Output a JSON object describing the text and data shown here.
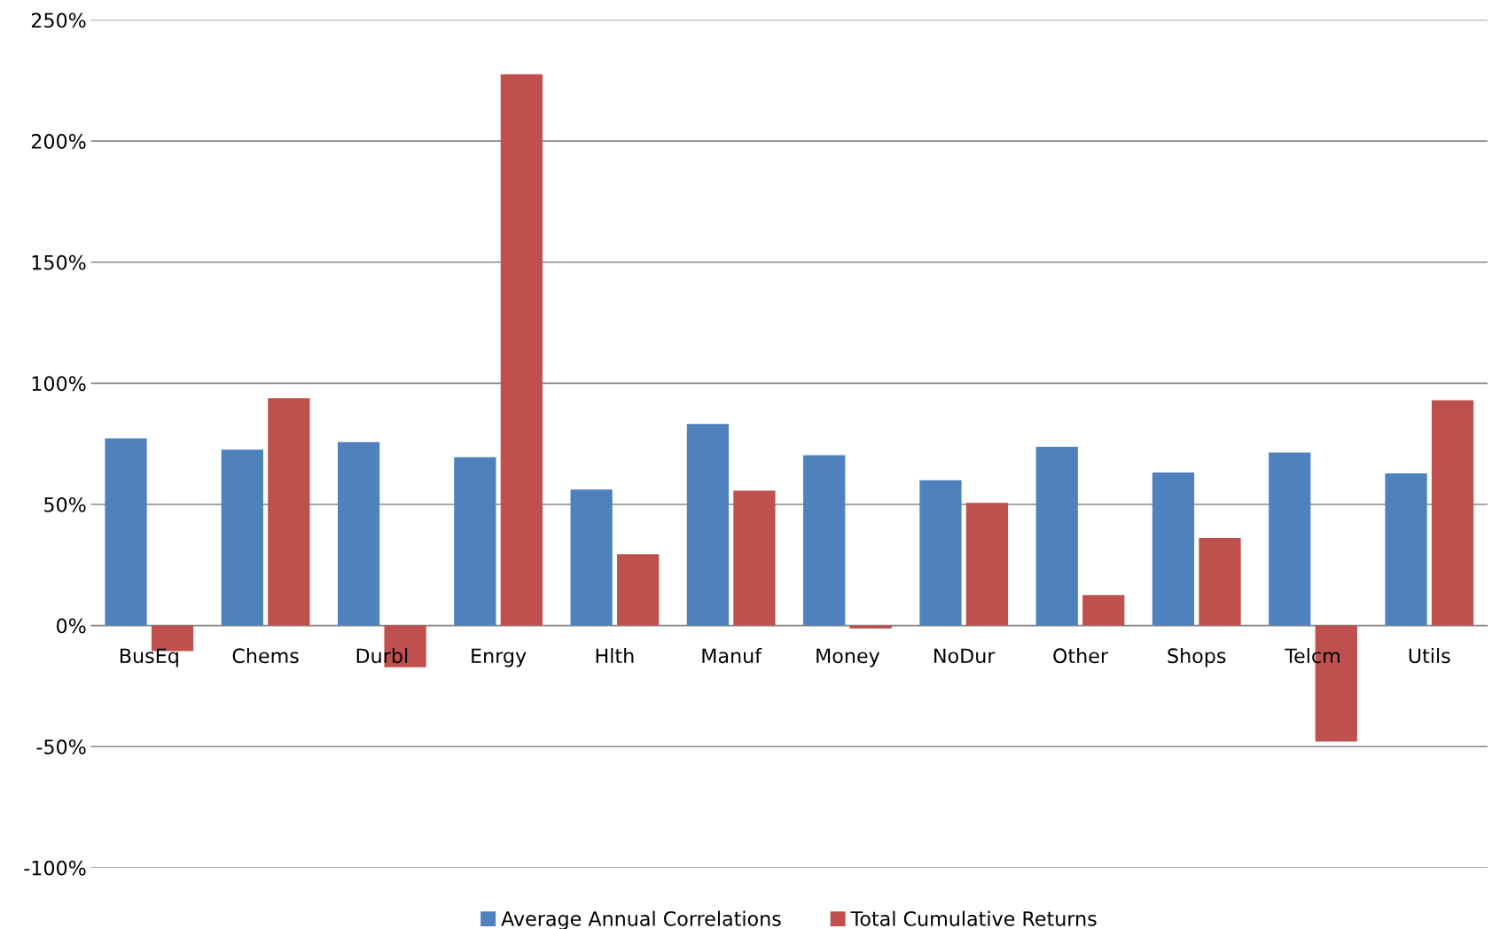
{
  "chart_data": {
    "type": "bar",
    "categories": [
      "BusEq",
      "Chems",
      "Durbl",
      "Enrgy",
      "Hlth",
      "Manuf",
      "Money",
      "NoDur",
      "Other",
      "Shops",
      "Telcm",
      "Utils"
    ],
    "series": [
      {
        "name": "Average Annual Correlations",
        "color": "#4f81bd",
        "values": [
          77.3,
          72.6,
          75.7,
          69.5,
          56.1,
          83.2,
          70.3,
          60.0,
          73.8,
          63.2,
          71.4,
          62.8
        ]
      },
      {
        "name": "Total Cumulative Returns",
        "color": "#c0504d",
        "values": [
          -10.6,
          93.8,
          -17.3,
          227.6,
          29.4,
          55.7,
          -1.2,
          50.6,
          12.6,
          36.1,
          -47.9,
          93.0
        ]
      }
    ],
    "ylim": [
      -100,
      250
    ],
    "yticks": [
      {
        "value": -100,
        "label": "-100%"
      },
      {
        "value": -50,
        "label": "-50%"
      },
      {
        "value": 0,
        "label": "0%"
      },
      {
        "value": 50,
        "label": "50%"
      },
      {
        "value": 100,
        "label": "100%"
      },
      {
        "value": 150,
        "label": "150%"
      },
      {
        "value": 200,
        "label": "200%"
      },
      {
        "value": 250,
        "label": "250%"
      }
    ],
    "grid": "y",
    "legend": "bottom"
  }
}
